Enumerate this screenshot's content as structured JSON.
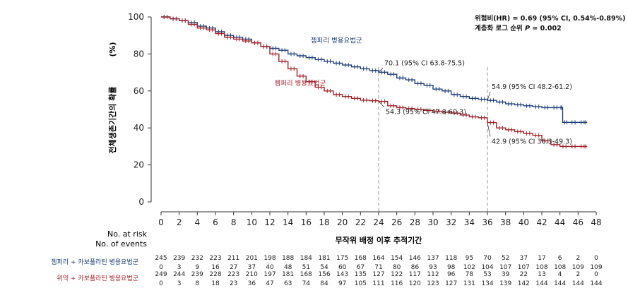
{
  "chart_data": {
    "type": "line",
    "ylabel": "전체생존기간의 확률",
    "yunit": "(%)",
    "xlabel": "무작위 배정 이후 추적기간",
    "xlim": [
      0,
      48
    ],
    "ylim": [
      0,
      100
    ],
    "xticks": [
      "0",
      "2",
      "4",
      "6",
      "8",
      "10",
      "12",
      "14",
      "16",
      "18",
      "20",
      "22",
      "24",
      "26",
      "28",
      "30",
      "32",
      "34",
      "36",
      "38",
      "40",
      "42",
      "44",
      "46",
      "48"
    ],
    "yticks": [
      "0",
      "20",
      "40",
      "60",
      "80",
      "100"
    ],
    "reference_lines_x": [
      24,
      36
    ],
    "hr_text": "위험비(HR) = 0.69 (95% CI, 0.54%-0.89%)",
    "logrank_label": "계층화 로그 순위 ",
    "logrank_p_symbol": "P",
    "logrank_p_value": " = 0.002",
    "series": [
      {
        "name": "젬퍼리 병용요법군",
        "color": "#1f3f7a",
        "x": [
          0,
          1,
          2,
          3,
          4,
          5,
          6,
          7,
          8,
          9,
          10,
          11,
          12,
          13,
          14,
          15,
          16,
          17,
          18,
          19,
          20,
          21,
          22,
          23,
          24,
          25,
          26,
          27,
          28,
          29,
          30,
          31,
          32,
          33,
          34,
          35,
          36,
          37,
          38,
          39,
          40,
          41,
          42,
          43,
          44,
          44.3,
          45,
          46,
          47
        ],
        "y": [
          100,
          99,
          98,
          97,
          95,
          94,
          92,
          90,
          89,
          88,
          86,
          84,
          83,
          82,
          80,
          79,
          78,
          77,
          76,
          75,
          74,
          73,
          72,
          71,
          70.1,
          69,
          67,
          66,
          64,
          63,
          61,
          60,
          58,
          57,
          56,
          55.5,
          54.9,
          54,
          53,
          52.5,
          52,
          51.5,
          51,
          51,
          51,
          43,
          43,
          43,
          43
        ]
      },
      {
        "name": "젬퍼리 병용요법군",
        "color": "#a3222a",
        "x": [
          0,
          1,
          2,
          3,
          4,
          5,
          6,
          7,
          8,
          9,
          10,
          11,
          12,
          13,
          14,
          15,
          16,
          17,
          18,
          19,
          20,
          21,
          22,
          23,
          24,
          25,
          26,
          27,
          28,
          29,
          30,
          31,
          32,
          33,
          34,
          35,
          36,
          37,
          38,
          39,
          40,
          41,
          42,
          43,
          44,
          45,
          46,
          47
        ],
        "y": [
          100,
          99,
          98,
          96,
          94,
          93,
          91,
          89,
          88,
          87,
          86,
          84,
          80,
          76,
          72,
          68,
          65,
          62,
          60,
          58,
          57,
          56,
          55,
          54.7,
          54.3,
          52,
          51,
          50.5,
          50,
          49.5,
          49,
          48.5,
          48,
          47,
          46,
          45.5,
          42.9,
          40,
          39,
          38,
          37,
          36,
          33,
          31,
          30,
          30,
          30,
          30
        ]
      }
    ],
    "annotations": [
      {
        "x": 24,
        "y": 70.1,
        "text": "70.1 (95% CI 63.8-75.5)",
        "series": 0
      },
      {
        "x": 36,
        "y": 54.9,
        "text": "54.9 (95% CI 48.2-61.2)",
        "series": 0
      },
      {
        "x": 24,
        "y": 54.3,
        "text": "54.3 (95% CI 47.8-60.3)",
        "series": 1
      },
      {
        "x": 36,
        "y": 42.9,
        "text": "42.9 (95% CI 36.3-49.3)",
        "series": 1
      }
    ],
    "risk_table": {
      "header_at_risk": "No. at risk",
      "header_events": "No. of events",
      "rows": [
        {
          "label": "젬퍼리 + 카보플라틴 병용요법군",
          "color": "#1f3f7a",
          "at_risk": [
            "245",
            "239",
            "232",
            "223",
            "211",
            "201",
            "198",
            "188",
            "184",
            "181",
            "175",
            "168",
            "164",
            "154",
            "146",
            "137",
            "118",
            "95",
            "70",
            "52",
            "37",
            "17",
            "6",
            "2",
            "0"
          ],
          "events": [
            "0",
            "3",
            "9",
            "16",
            "27",
            "37",
            "40",
            "48",
            "51",
            "54",
            "60",
            "67",
            "71",
            "80",
            "86",
            "93",
            "98",
            "102",
            "104",
            "107",
            "107",
            "108",
            "108",
            "109",
            "109"
          ]
        },
        {
          "label": "위약 + 카보플라틴 병용요법군",
          "color": "#a3222a",
          "at_risk": [
            "249",
            "244",
            "239",
            "228",
            "223",
            "210",
            "197",
            "181",
            "168",
            "156",
            "143",
            "135",
            "127",
            "122",
            "117",
            "112",
            "96",
            "78",
            "53",
            "39",
            "22",
            "13",
            "4",
            "2",
            "0"
          ],
          "events": [
            "0",
            "3",
            "8",
            "18",
            "23",
            "36",
            "47",
            "63",
            "74",
            "84",
            "97",
            "105",
            "111",
            "116",
            "120",
            "123",
            "127",
            "131",
            "134",
            "139",
            "142",
            "144",
            "144",
            "144",
            "144"
          ]
        }
      ]
    }
  }
}
